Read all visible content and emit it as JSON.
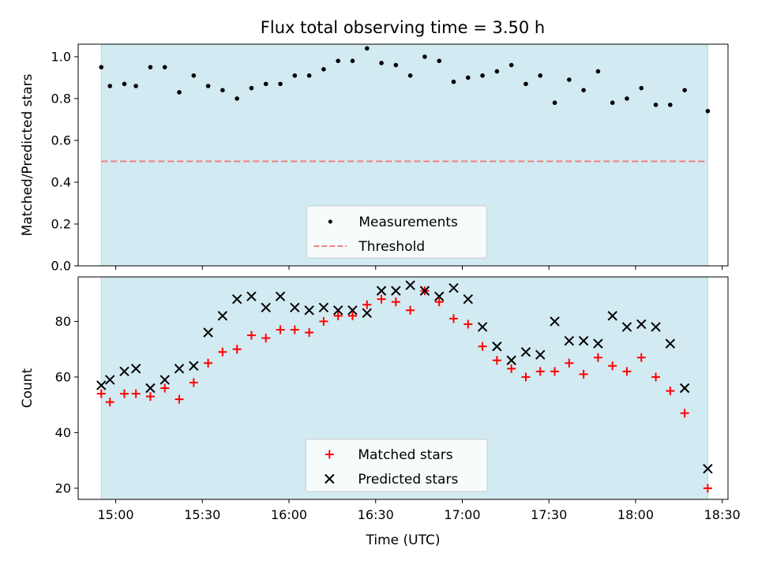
{
  "chart_data": {
    "type": "scatter",
    "title": "Flux total observing time = 3.50 h",
    "xlabel": "Time (UTC)",
    "x_tick_labels": [
      "15:00",
      "15:30",
      "16:00",
      "16:30",
      "17:00",
      "17:30",
      "18:00",
      "18:30"
    ],
    "x_range": [
      "14:47",
      "18:32"
    ],
    "shaded_interval": [
      "14:55",
      "18:25"
    ],
    "shade_color": "#add8e6",
    "times": [
      "14:55",
      "14:58",
      "15:03",
      "15:07",
      "15:12",
      "15:17",
      "15:22",
      "15:27",
      "15:32",
      "15:37",
      "15:42",
      "15:47",
      "15:52",
      "15:57",
      "16:02",
      "16:07",
      "16:12",
      "16:17",
      "16:22",
      "16:27",
      "16:32",
      "16:37",
      "16:42",
      "16:47",
      "16:52",
      "16:57",
      "17:02",
      "17:07",
      "17:12",
      "17:17",
      "17:22",
      "17:27",
      "17:32",
      "17:37",
      "17:42",
      "17:47",
      "17:52",
      "17:57",
      "18:02",
      "18:07",
      "18:12",
      "18:17",
      "18:25"
    ],
    "panels": [
      {
        "ylabel": "Matched/Predicted stars",
        "ylim": [
          0,
          1.06
        ],
        "y_ticks": [
          "0.0",
          "0.2",
          "0.4",
          "0.6",
          "0.8",
          "1.0"
        ],
        "legend_position": "lower center",
        "series": [
          {
            "name": "Measurements",
            "marker": "dot",
            "color": "#000000",
            "values": [
              0.95,
              0.86,
              0.87,
              0.86,
              0.95,
              0.95,
              0.83,
              0.91,
              0.86,
              0.84,
              0.8,
              0.85,
              0.87,
              0.87,
              0.91,
              0.91,
              0.94,
              0.98,
              0.98,
              1.04,
              0.97,
              0.96,
              0.91,
              1.0,
              0.98,
              0.88,
              0.9,
              0.91,
              0.93,
              0.96,
              0.87,
              0.91,
              0.78,
              0.89,
              0.84,
              0.93,
              0.78,
              0.8,
              0.85,
              0.77,
              0.77,
              0.84,
              0.74
            ]
          },
          {
            "name": "Threshold",
            "marker": "dashed-line",
            "color": "#f08080",
            "value": 0.5
          }
        ]
      },
      {
        "ylabel": "Count",
        "ylim": [
          16,
          96
        ],
        "y_ticks": [
          "20",
          "40",
          "60",
          "80"
        ],
        "legend_position": "lower center",
        "series": [
          {
            "name": "Matched stars",
            "marker": "plus",
            "color": "#ff0000",
            "values": [
              54,
              51,
              54,
              54,
              53,
              56,
              52,
              58,
              65,
              69,
              70,
              75,
              74,
              77,
              77,
              76,
              80,
              82,
              82,
              86,
              88,
              87,
              84,
              91,
              87,
              81,
              79,
              71,
              66,
              63,
              60,
              62,
              62,
              65,
              61,
              67,
              64,
              62,
              67,
              60,
              55,
              47,
              20
            ]
          },
          {
            "name": "Predicted stars",
            "marker": "x",
            "color": "#000000",
            "values": [
              57,
              59,
              62,
              63,
              56,
              59,
              63,
              64,
              76,
              82,
              88,
              89,
              85,
              89,
              85,
              84,
              85,
              84,
              84,
              83,
              91,
              91,
              93,
              91,
              89,
              92,
              88,
              78,
              71,
              66,
              69,
              68,
              80,
              73,
              73,
              72,
              82,
              78,
              79,
              78,
              72,
              56,
              27
            ]
          }
        ]
      }
    ]
  }
}
